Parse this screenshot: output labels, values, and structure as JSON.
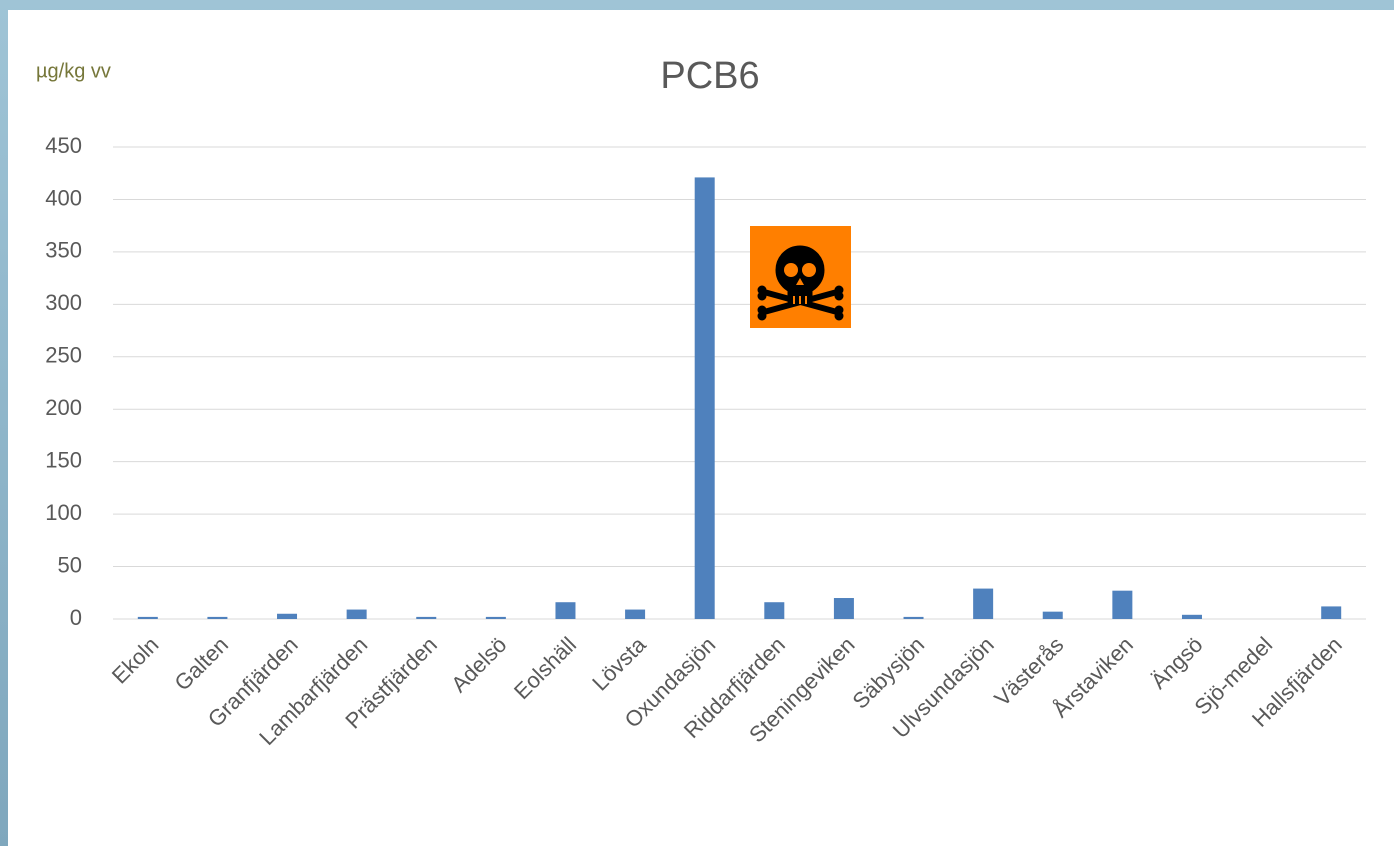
{
  "chart_data": {
    "type": "bar",
    "title": "PCB6",
    "y_unit": "µg/kg vv",
    "categories": [
      "Ekoln",
      "Galten",
      "Granfjärden",
      "Lambarfjärden",
      "Prästfjärden",
      "Adelsö",
      "Eolshäll",
      "Lövsta",
      "Oxundasjön",
      "Riddarfjärden",
      "Steningeviken",
      "Säbysjön",
      "Ulvsundasjön",
      "Västerås",
      "Årstaviken",
      "Ängsö",
      "Sjö-medel",
      "Hallsfjärden"
    ],
    "values": [
      2,
      2,
      5,
      9,
      2,
      2,
      16,
      9,
      421,
      16,
      20,
      2,
      29,
      7,
      27,
      4,
      null,
      12
    ],
    "color": "#4f81bd",
    "ylim": [
      0,
      450
    ],
    "yticks": [
      0,
      50,
      100,
      150,
      200,
      250,
      300,
      350,
      400,
      450
    ],
    "grid": true
  }
}
